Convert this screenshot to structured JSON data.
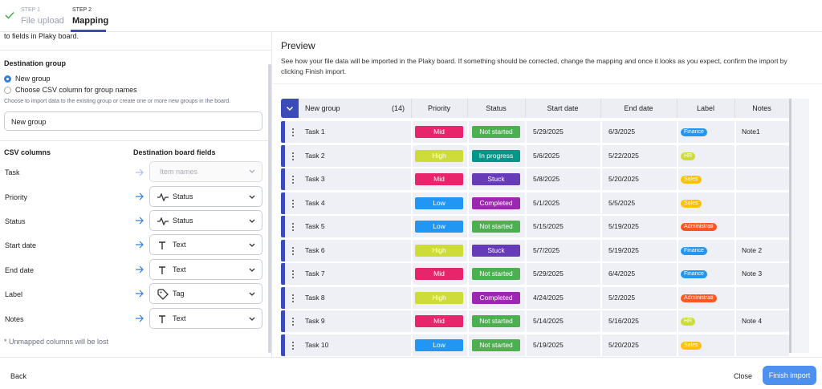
{
  "steps": [
    {
      "step": "STEP 1",
      "name": "File upload"
    },
    {
      "step": "STEP 2",
      "name": "Mapping"
    }
  ],
  "left": {
    "intro": "to fields in Plaky board.",
    "destination_title": "Destination group",
    "options": [
      "New group",
      "Choose CSV column for group names"
    ],
    "hint": "Choose to import data to the existing group or create one or more new groups in the board.",
    "group_input": "New group",
    "csv_header": "CSV columns",
    "dest_header": "Destination board fields",
    "mappings": [
      {
        "column": "Task",
        "field": "Item names"
      },
      {
        "column": "Priority",
        "field": "Status"
      },
      {
        "column": "Status",
        "field": "Status"
      },
      {
        "column": "Start date",
        "field": "Text"
      },
      {
        "column": "End date",
        "field": "Text"
      },
      {
        "column": "Label",
        "field": "Tag"
      },
      {
        "column": "Notes",
        "field": "Text"
      }
    ],
    "footnote": "* Unmapped columns will be lost"
  },
  "preview": {
    "title": "Preview",
    "description": "See how your file data will be imported in the Plaky board. If something should be corrected, change the mapping and once it looks as you expect, confirm the import by clicking Finish import.",
    "table": {
      "group": "New group",
      "count": "(14)",
      "columns": [
        "Priority",
        "Status",
        "Start date",
        "End date",
        "Label",
        "Notes"
      ],
      "rows": [
        {
          "name": "Task 1",
          "priority": {
            "text": "Mid",
            "color": "#e8246b"
          },
          "status": {
            "text": "Not started",
            "color": "#4caf50"
          },
          "start": "5/29/2025",
          "end": "6/3/2025",
          "label": {
            "text": "Finance",
            "color": "#2196f3"
          },
          "notes": "Note1"
        },
        {
          "name": "Task 2",
          "priority": {
            "text": "High",
            "color": "#cddc39"
          },
          "status": {
            "text": "In progress",
            "color": "#009688"
          },
          "start": "5/6/2025",
          "end": "5/22/2025",
          "label": {
            "text": "HR",
            "color": "#cddc39"
          }
        },
        {
          "name": "Task 3",
          "priority": {
            "text": "Mid",
            "color": "#e8246b"
          },
          "status": {
            "text": "Stuck",
            "color": "#673ab7"
          },
          "start": "5/8/2025",
          "end": "5/20/2025",
          "label": {
            "text": "Sales",
            "color": "#ffc107"
          }
        },
        {
          "name": "Task 4",
          "priority": {
            "text": "Low",
            "color": "#2196f3"
          },
          "status": {
            "text": "Completed",
            "color": "#9c27b0"
          },
          "start": "5/1/2025",
          "end": "5/5/2025",
          "label": {
            "text": "Sales",
            "color": "#ffc107"
          }
        },
        {
          "name": "Task 5",
          "priority": {
            "text": "Low",
            "color": "#2196f3"
          },
          "status": {
            "text": "Not started",
            "color": "#4caf50"
          },
          "start": "5/15/2025",
          "end": "5/19/2025",
          "label": {
            "text": "Administrati",
            "color": "#ff5722"
          }
        },
        {
          "name": "Task 6",
          "priority": {
            "text": "High",
            "color": "#cddc39"
          },
          "status": {
            "text": "Stuck",
            "color": "#673ab7"
          },
          "start": "5/7/2025",
          "end": "5/19/2025",
          "label": {
            "text": "Finance",
            "color": "#2196f3"
          },
          "notes": "Note 2"
        },
        {
          "name": "Task 7",
          "priority": {
            "text": "Mid",
            "color": "#e8246b"
          },
          "status": {
            "text": "Not started",
            "color": "#4caf50"
          },
          "start": "5/29/2025",
          "end": "6/4/2025",
          "label": {
            "text": "Finance",
            "color": "#2196f3"
          },
          "notes": "Note 3"
        },
        {
          "name": "Task 8",
          "priority": {
            "text": "High",
            "color": "#cddc39"
          },
          "status": {
            "text": "Completed",
            "color": "#9c27b0"
          },
          "start": "4/24/2025",
          "end": "5/2/2025",
          "label": {
            "text": "Administrati",
            "color": "#ff5722"
          }
        },
        {
          "name": "Task 9",
          "priority": {
            "text": "Mid",
            "color": "#e8246b"
          },
          "status": {
            "text": "Not started",
            "color": "#4caf50"
          },
          "start": "5/14/2025",
          "end": "5/16/2025",
          "label": {
            "text": "HR",
            "color": "#cddc39"
          },
          "notes": "Note 4"
        },
        {
          "name": "Task 10",
          "priority": {
            "text": "Low",
            "color": "#2196f3"
          },
          "status": {
            "text": "Not started",
            "color": "#4caf50"
          },
          "start": "5/19/2025",
          "end": "5/20/2025",
          "label": {
            "text": "Sales",
            "color": "#ffc107"
          }
        }
      ]
    }
  },
  "footer": {
    "back": "Back",
    "close": "Close",
    "finish": "Finish import"
  }
}
